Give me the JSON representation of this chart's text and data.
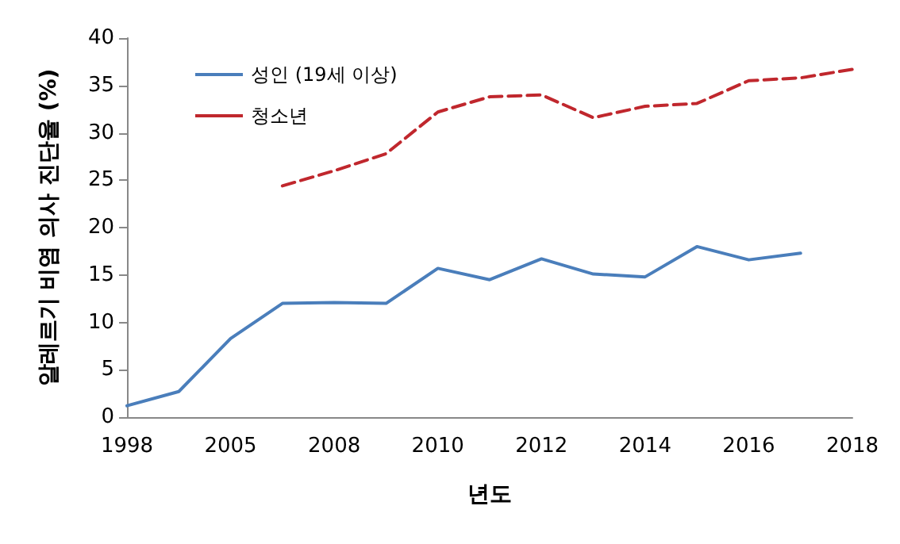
{
  "chart_data": {
    "type": "line",
    "xlabel": "년도",
    "ylabel": "알레르기 비염 의사 진단율 (%)",
    "categories": [
      "1998",
      null,
      "2005",
      null,
      "2008",
      null,
      "2010",
      null,
      "2012",
      null,
      "2014",
      null,
      "2016",
      null,
      "2018"
    ],
    "series": [
      {
        "name": "성인 (19세 이상)",
        "color": "#4a7ebb",
        "line_style": "solid",
        "values": [
          1.2,
          2.7,
          8.3,
          12.0,
          12.1,
          12.0,
          15.7,
          14.5,
          16.7,
          15.1,
          14.8,
          18.0,
          16.6,
          17.3,
          null
        ]
      },
      {
        "name": "청소년",
        "color": "#c0272d",
        "line_style": "dashed",
        "values": [
          null,
          null,
          null,
          24.4,
          26.0,
          27.8,
          32.2,
          33.8,
          34.0,
          31.6,
          32.8,
          33.1,
          35.5,
          35.8,
          36.7
        ]
      }
    ],
    "ylim": [
      0,
      40
    ],
    "yticks": [
      0,
      5,
      10,
      15,
      20,
      25,
      30,
      35,
      40
    ],
    "grid": false,
    "legend": "top left",
    "marker": "none"
  }
}
